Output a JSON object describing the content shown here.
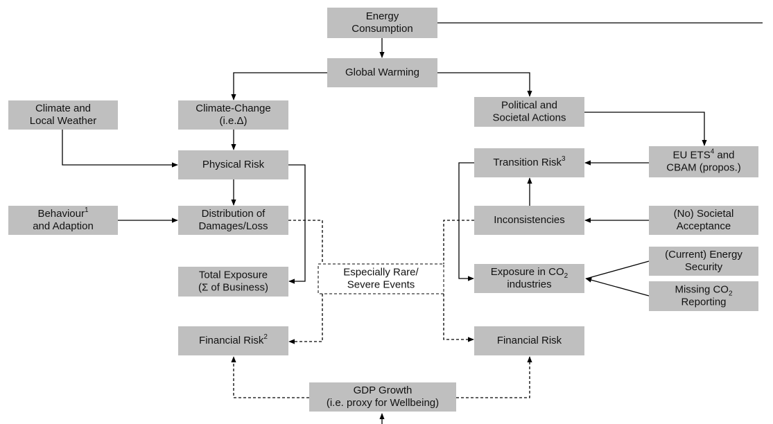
{
  "nodes": [
    {
      "lines": [
        [
          {
            "text": "Energy"
          }
        ],
        [
          {
            "text": "Consumption"
          }
        ]
      ]
    },
    {
      "lines": [
        [
          {
            "text": "Global Warming"
          }
        ]
      ]
    },
    {
      "lines": [
        [
          {
            "text": "Climate and"
          }
        ],
        [
          {
            "text": "Local Weather"
          }
        ]
      ]
    },
    {
      "lines": [
        [
          {
            "text": "Climate-Change"
          }
        ],
        [
          {
            "text": "(i.e.Δ)"
          }
        ]
      ]
    },
    {
      "lines": [
        [
          {
            "text": "Political and"
          }
        ],
        [
          {
            "text": "Societal Actions"
          }
        ]
      ]
    },
    {
      "lines": [
        [
          {
            "text": "Physical Risk"
          }
        ]
      ]
    },
    {
      "lines": [
        [
          {
            "text": "Transition Risk"
          },
          {
            "sup": "3"
          }
        ]
      ]
    },
    {
      "lines": [
        [
          {
            "text": "EU ETS"
          },
          {
            "sup": "4"
          },
          {
            "text": " and"
          }
        ],
        [
          {
            "text": "CBAM (propos.)"
          }
        ]
      ]
    },
    {
      "lines": [
        [
          {
            "text": "Behaviour"
          },
          {
            "sup": "1"
          }
        ],
        [
          {
            "text": "and Adaption"
          }
        ]
      ]
    },
    {
      "lines": [
        [
          {
            "text": "Distribution of"
          }
        ],
        [
          {
            "text": "Damages/Loss"
          }
        ]
      ]
    },
    {
      "lines": [
        [
          {
            "text": "Inconsistencies"
          }
        ]
      ]
    },
    {
      "lines": [
        [
          {
            "text": "(No) Societal"
          }
        ],
        [
          {
            "text": "Acceptance"
          }
        ]
      ]
    },
    {
      "lines": [
        [
          {
            "text": "(Current) Energy"
          }
        ],
        [
          {
            "text": "Security"
          }
        ]
      ]
    },
    {
      "lines": [
        [
          {
            "text": "Missing CO"
          },
          {
            "sub": "2"
          }
        ],
        [
          {
            "text": "Reporting"
          }
        ]
      ]
    },
    {
      "lines": [
        [
          {
            "text": "Total Exposure"
          }
        ],
        [
          {
            "text": "(Σ of Business)"
          }
        ]
      ]
    },
    {
      "lines": [
        [
          {
            "text": "Especially Rare/"
          }
        ],
        [
          {
            "text": "Severe Events"
          }
        ]
      ]
    },
    {
      "lines": [
        [
          {
            "text": "Exposure in CO"
          },
          {
            "sub": "2"
          }
        ],
        [
          {
            "text": "industries"
          }
        ]
      ]
    },
    {
      "lines": [
        [
          {
            "text": "Financial Risk"
          },
          {
            "sup": "2"
          }
        ]
      ]
    },
    {
      "lines": [
        [
          {
            "text": "Financial Risk"
          }
        ]
      ]
    },
    {
      "lines": [
        [
          {
            "text": "GDP Growth"
          }
        ],
        [
          {
            "text": "(i.e. proxy for Wellbeing)"
          }
        ]
      ]
    }
  ]
}
